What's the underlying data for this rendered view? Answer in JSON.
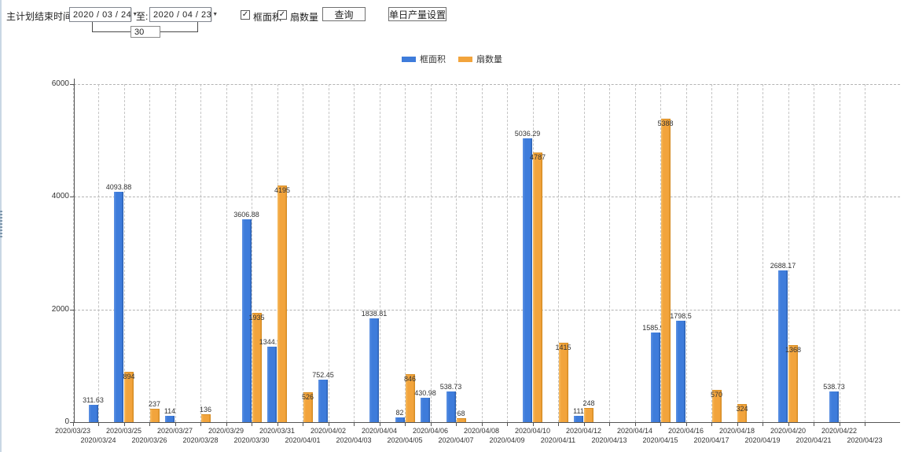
{
  "toolbar": {
    "end_time_label": "主计划结束时间:",
    "date_from": "2020 / 03 / 24",
    "to_label": "至:",
    "date_to": "2020 / 04 / 23",
    "interval_days": "30",
    "checkbox_frame_area": {
      "label": "框面积",
      "checked": true,
      "checkmark": "✓"
    },
    "checkbox_fan_count": {
      "label": "扇数量",
      "checked": true,
      "checkmark": "✓"
    },
    "query_button": "查询",
    "daily_output_button": "单日产量设置",
    "combo_arrow": "▼"
  },
  "legend": {
    "items": [
      {
        "label": "框面积",
        "color": "#3e7cdb"
      },
      {
        "label": "扇数量",
        "color": "#f2a43c"
      }
    ]
  },
  "chart_data": {
    "type": "bar",
    "title": "",
    "xlabel": "",
    "ylabel": "",
    "ylim": [
      0,
      6000
    ],
    "yticks": [
      0,
      2000,
      4000,
      6000
    ],
    "grid": true,
    "legend_position": "top",
    "categories": [
      "2020/03/23",
      "2020/03/24",
      "2020/03/25",
      "2020/03/26",
      "2020/03/27",
      "2020/03/28",
      "2020/03/29",
      "2020/03/30",
      "2020/03/31",
      "2020/04/01",
      "2020/04/02",
      "2020/04/03",
      "2020/04/04",
      "2020/04/05",
      "2020/04/06",
      "2020/04/07",
      "2020/04/08",
      "2020/04/09",
      "2020/04/10",
      "2020/04/11",
      "2020/04/12",
      "2020/04/13",
      "2020/04/14",
      "2020/04/15",
      "2020/04/16",
      "2020/04/17",
      "2020/04/18",
      "2020/04/19",
      "2020/04/20",
      "2020/04/21",
      "2020/04/22",
      "2020/04/23"
    ],
    "series": [
      {
        "name": "框面积",
        "color": "#3e7cdb",
        "values": [
          null,
          311.63,
          4093.88,
          null,
          114,
          null,
          null,
          3606.88,
          1344.95,
          null,
          752.45,
          null,
          1838.81,
          82,
          430.98,
          538.73,
          null,
          null,
          5036.29,
          null,
          111,
          null,
          null,
          1585.96,
          1798.5,
          null,
          null,
          null,
          2688.17,
          null,
          538.73,
          null
        ]
      },
      {
        "name": "扇数量",
        "color": "#f2a43c",
        "values": [
          null,
          null,
          894,
          237,
          null,
          136,
          null,
          1935,
          4195,
          526,
          null,
          null,
          null,
          846,
          null,
          68,
          null,
          null,
          4787,
          1415,
          248,
          null,
          null,
          5388,
          null,
          570,
          324,
          null,
          1368,
          null,
          null,
          null
        ]
      }
    ]
  }
}
